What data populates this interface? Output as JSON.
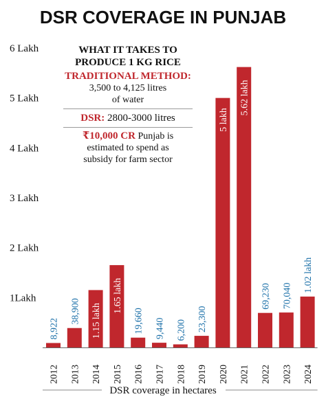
{
  "chart_data": {
    "type": "bar",
    "title": "DSR COVERAGE IN PUNJAB",
    "xlabel": "DSR coverage in hectares",
    "ylabel": "",
    "categories": [
      "2012",
      "2013",
      "2014",
      "2015",
      "2016",
      "2017",
      "2018",
      "2019",
      "2020",
      "2021",
      "2022",
      "2023",
      "2024"
    ],
    "values": [
      8922,
      38900,
      115000,
      165000,
      19660,
      9440,
      6200,
      23300,
      500000,
      562000,
      69230,
      70040,
      102000
    ],
    "value_labels": [
      "8,922",
      "38,900",
      "1.15 lakh",
      "1.65 lakh",
      "19,660",
      "9,440",
      "6,200",
      "23,300",
      "5 lakh",
      "5.62 lakh",
      "69,230",
      "70,040",
      "1.02 lakh"
    ],
    "yticks": [
      {
        "value": 100000,
        "label": "1Lakh"
      },
      {
        "value": 200000,
        "label": "2 Lakh"
      },
      {
        "value": 300000,
        "label": "3 Lakh"
      },
      {
        "value": 400000,
        "label": "4 Lakh"
      },
      {
        "value": 500000,
        "label": "5 Lakh"
      },
      {
        "value": 600000,
        "label": "6 Lakh"
      }
    ],
    "ylim": [
      0,
      600000
    ],
    "grid": false,
    "colors": {
      "bar": "#c0272d",
      "label": "#1a6fa8",
      "label_on_bar": "#ffffff"
    }
  },
  "info_box": {
    "heading_line1": "WHAT IT TAKES TO",
    "heading_line2": "PRODUCE 1 KG RICE",
    "traditional_label": "TRADITIONAL METHOD:",
    "traditional_line1": "3,500 to 4,125 litres",
    "traditional_line2": "of water",
    "dsr_label": "DSR:",
    "dsr_value": " 2800-3000 litres",
    "subsidy_amount": "₹10,000 CR",
    "subsidy_line1_rest": " Punjab is",
    "subsidy_line2": "estimated to spend as",
    "subsidy_line3": "subsidy for farm sector"
  }
}
